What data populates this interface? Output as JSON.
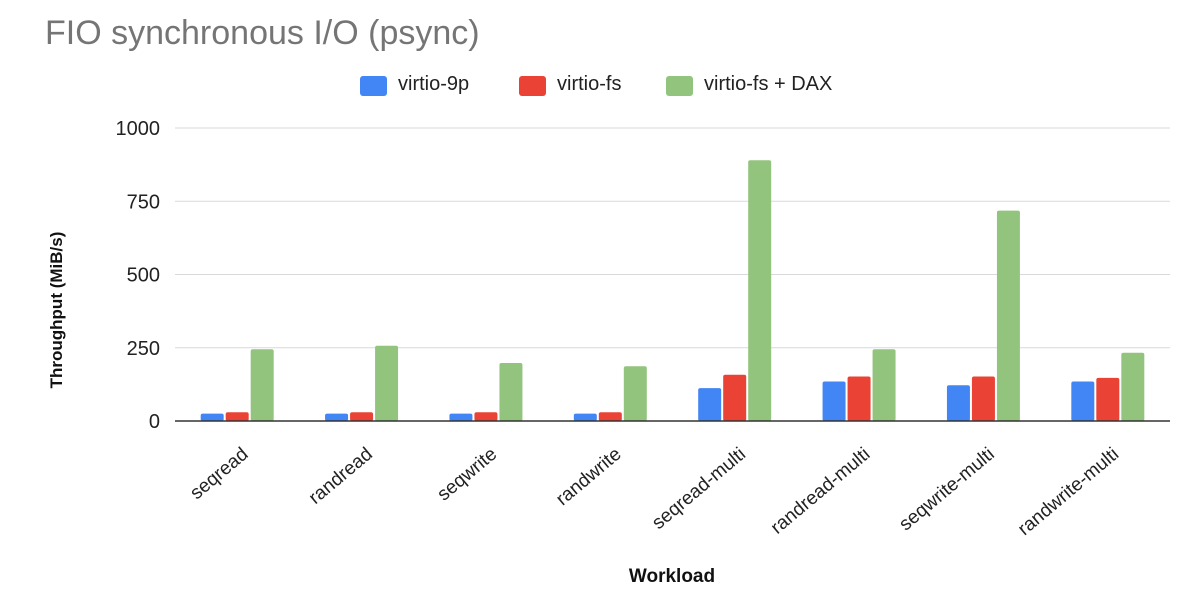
{
  "chart_data": {
    "type": "bar",
    "title": "FIO synchronous I/O (psync)",
    "xlabel": "Workload",
    "ylabel": "Throughput (MiB/s)",
    "ylim": [
      0,
      1000
    ],
    "yticks": [
      0,
      250,
      500,
      750,
      1000
    ],
    "grid": true,
    "legend_position": "top",
    "categories": [
      "seqread",
      "randread",
      "seqwrite",
      "randwrite",
      "seqread-multi",
      "randread-multi",
      "seqwrite-multi",
      "randwrite-multi"
    ],
    "series": [
      {
        "name": "virtio-9p",
        "color": "#4285F4",
        "values": [
          25,
          25,
          25,
          25,
          112,
          135,
          122,
          135
        ]
      },
      {
        "name": "virtio-fs",
        "color": "#EA4335",
        "values": [
          30,
          30,
          30,
          30,
          158,
          152,
          152,
          147
        ]
      },
      {
        "name": "virtio-fs + DAX",
        "color": "#93C47D",
        "values": [
          245,
          257,
          198,
          187,
          890,
          245,
          718,
          233
        ]
      }
    ]
  }
}
